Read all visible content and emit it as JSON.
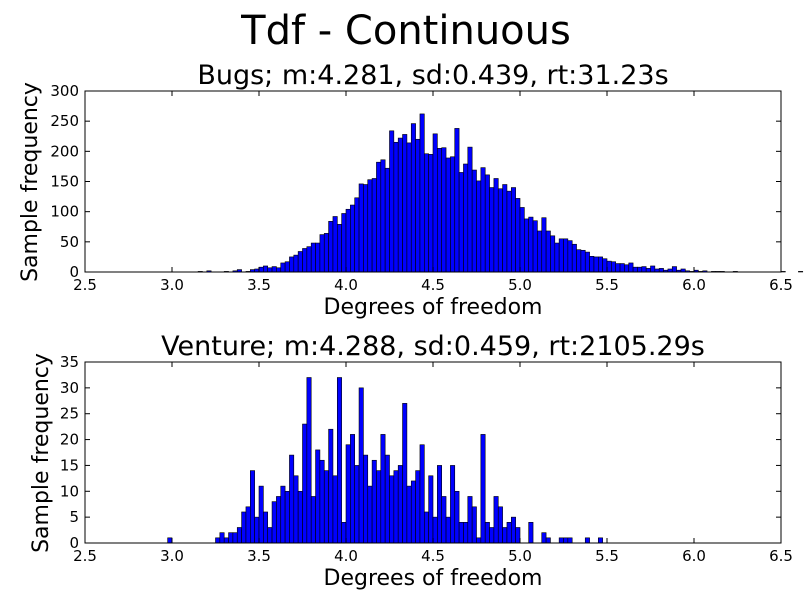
{
  "title": "Tdf - Continuous",
  "chart_data": [
    {
      "type": "bar",
      "title": "Bugs;  m:4.281,  sd:0.439,  rt:31.23s",
      "xlabel": "Degrees of freedom",
      "ylabel": "Sample frequency",
      "xlim": [
        2.5,
        6.5
      ],
      "ylim": [
        0,
        300
      ],
      "xticks": [
        "2.5",
        "3.0",
        "3.5",
        "4.0",
        "4.5",
        "5.0",
        "5.5",
        "6.0",
        "6.5"
      ],
      "yticks": [
        "0",
        "50",
        "100",
        "150",
        "200",
        "250",
        "300"
      ],
      "bin_start": 2.5,
      "bin_width": 0.025,
      "values": [
        0,
        0,
        0,
        0,
        0,
        0,
        0,
        0,
        0,
        0,
        0,
        0,
        0,
        0,
        0,
        0,
        0,
        0,
        0,
        0,
        0,
        0,
        0,
        0,
        0,
        0,
        1,
        0,
        2,
        0,
        0,
        0,
        1,
        0,
        2,
        4,
        0,
        1,
        4,
        5,
        8,
        10,
        7,
        9,
        7,
        15,
        17,
        25,
        28,
        34,
        39,
        42,
        48,
        48,
        62,
        64,
        84,
        92,
        79,
        97,
        104,
        111,
        123,
        146,
        145,
        153,
        155,
        182,
        186,
        172,
        234,
        215,
        222,
        228,
        214,
        246,
        220,
        262,
        196,
        195,
        229,
        205,
        206,
        189,
        191,
        238,
        165,
        179,
        207,
        169,
        151,
        173,
        161,
        140,
        155,
        138,
        145,
        134,
        140,
        122,
        107,
        88,
        91,
        85,
        68,
        90,
        68,
        60,
        48,
        55,
        55,
        52,
        46,
        37,
        36,
        33,
        26,
        25,
        25,
        22,
        18,
        17,
        14,
        14,
        12,
        15,
        8,
        8,
        9,
        6,
        10,
        5,
        6,
        3,
        5,
        9,
        3,
        5,
        2,
        1,
        3,
        1,
        2,
        0,
        1,
        1,
        1,
        0,
        0,
        1,
        0,
        0,
        0,
        0,
        0,
        0,
        0,
        0,
        0,
        0,
        1,
        0,
        0,
        0,
        1,
        0,
        0,
        0,
        0,
        0,
        0,
        0,
        0
      ],
      "grid": false
    },
    {
      "type": "bar",
      "title": "Venture;  m:4.288,  sd:0.459,  rt:2105.29s",
      "xlabel": "Degrees of freedom",
      "ylabel": "Sample frequency",
      "xlim": [
        2.5,
        6.5
      ],
      "ylim": [
        0,
        35
      ],
      "xticks": [
        "2.5",
        "3.0",
        "3.5",
        "4.0",
        "4.5",
        "5.0",
        "5.5",
        "6.0",
        "6.5"
      ],
      "yticks": [
        "0",
        "5",
        "10",
        "15",
        "20",
        "25",
        "30",
        "35"
      ],
      "bin_start": 2.5,
      "bin_width": 0.025,
      "values": [
        0,
        0,
        0,
        0,
        0,
        0,
        0,
        0,
        0,
        0,
        0,
        0,
        0,
        0,
        0,
        0,
        0,
        0,
        0,
        1,
        0,
        0,
        0,
        0,
        0,
        0,
        0,
        0,
        0,
        0,
        1,
        2,
        1,
        2,
        2,
        3,
        6,
        7,
        14,
        5,
        11,
        6,
        3,
        8,
        9,
        11,
        10,
        17,
        13,
        10,
        23,
        32,
        9,
        18,
        16,
        14,
        22,
        13,
        32,
        4,
        19,
        21,
        15,
        30,
        17,
        11,
        16,
        14,
        21,
        17,
        13,
        14,
        15,
        27,
        11,
        12,
        14,
        19,
        6,
        13,
        5,
        15,
        9,
        5,
        15,
        10,
        4,
        4,
        9,
        7,
        1,
        21,
        4,
        3,
        9,
        7,
        3,
        4,
        5,
        3,
        0,
        0,
        4,
        0,
        0,
        2,
        1,
        0,
        0,
        1,
        1,
        1,
        0,
        0,
        0,
        1,
        0,
        0,
        1,
        0,
        0,
        0,
        0,
        0,
        0,
        0,
        0,
        0,
        0,
        0,
        0,
        0,
        0,
        0,
        0,
        0,
        0,
        0,
        0,
        0,
        0,
        0,
        0,
        0,
        0,
        0,
        0,
        0,
        0,
        0,
        0,
        0,
        0,
        0,
        0,
        0,
        0,
        0,
        0,
        0,
        0,
        0
      ],
      "grid": false
    }
  ]
}
